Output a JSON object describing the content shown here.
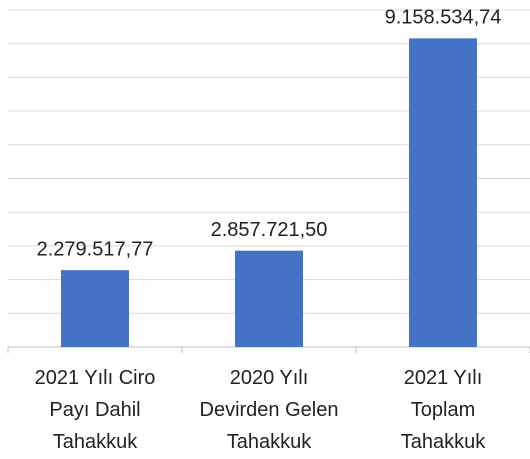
{
  "chart_data": {
    "type": "bar",
    "categories": [
      "2021 Yılı Ciro\nPayı Dahil\nTahakkuk",
      "2020 Yılı\nDevirden Gelen\nTahakkuk",
      "2021 Yılı\nToplam\nTahakkuk"
    ],
    "values": [
      2279517.77,
      2857721.5,
      9158534.74
    ],
    "value_labels": [
      "2.279.517,77",
      "2.857.721,50",
      "9.158.534,74"
    ],
    "color": "#4472c4",
    "ylim": [
      0,
      10000000
    ],
    "yticks": [
      0,
      1000000,
      2000000,
      3000000,
      4000000,
      5000000,
      6000000,
      7000000,
      8000000,
      9000000,
      10000000
    ],
    "grid": true
  }
}
